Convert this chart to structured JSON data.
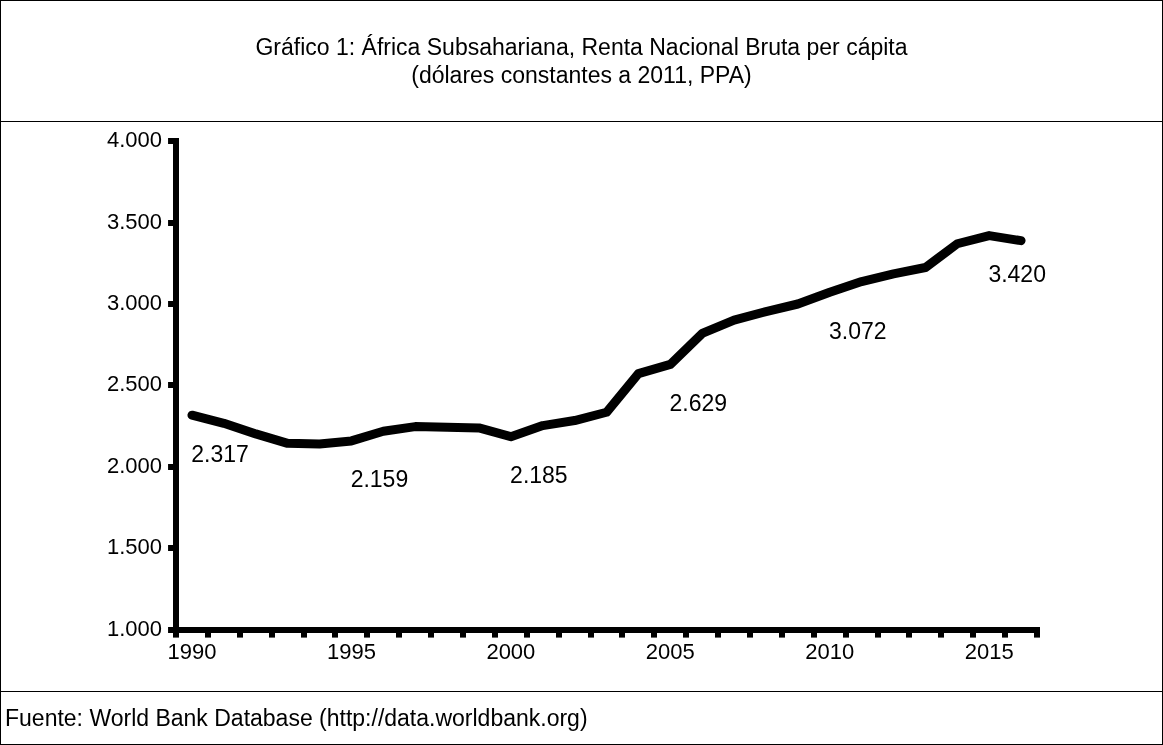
{
  "chart_data": {
    "type": "line",
    "title": "Gráfico 1: África Subsahariana, Renta Nacional Bruta per cápita\n(dólares constantes a 2011, PPA)",
    "categories": [
      "1990",
      null,
      null,
      null,
      null,
      "1995",
      null,
      null,
      null,
      null,
      "2000",
      null,
      null,
      null,
      null,
      "2005",
      null,
      null,
      null,
      null,
      "2010",
      null,
      null,
      null,
      null,
      "2015",
      null
    ],
    "series": [
      {
        "color": "#000000",
        "values": [
          2317,
          2267,
          2202,
          2144,
          2140,
          2159,
          2218,
          2247,
          2243,
          2239,
          2185,
          2253,
          2284,
          2335,
          2572,
          2629,
          2819,
          2901,
          2953,
          3000,
          3072,
          3138,
          3185,
          3224,
          3370,
          3420,
          3389
        ],
        "value_labels": [
          "2.317",
          null,
          null,
          null,
          null,
          "2.159",
          null,
          null,
          null,
          null,
          "2.185",
          null,
          null,
          null,
          null,
          "2.629",
          null,
          null,
          null,
          null,
          "3.072",
          null,
          null,
          null,
          null,
          "3.420",
          null
        ]
      }
    ],
    "ylim": [
      1000,
      4000
    ],
    "yticks": [
      {
        "value": 1000,
        "label": "1.000"
      },
      {
        "value": 1500,
        "label": "1.500"
      },
      {
        "value": 2000,
        "label": "2.000"
      },
      {
        "value": 2500,
        "label": "2.500"
      },
      {
        "value": 3000,
        "label": "3.000"
      },
      {
        "value": 3500,
        "label": "3.500"
      },
      {
        "value": 4000,
        "label": "4.000"
      }
    ],
    "grid": false,
    "legend": false,
    "marker": "none",
    "line_style": "solid",
    "annotations": [
      "Fuente: World Bank Database (http://data.worldbank.org)"
    ]
  }
}
